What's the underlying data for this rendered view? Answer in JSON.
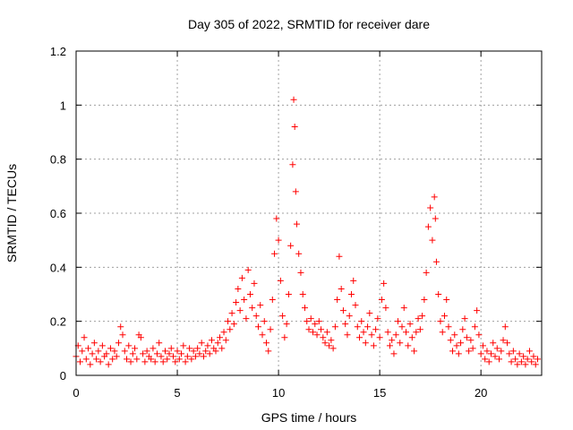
{
  "chart_data": {
    "type": "scatter",
    "title": "Day 305 of 2022, SRMTID for receiver dare",
    "xlabel": "GPS time / hours",
    "ylabel": "SRMTID / TECUs",
    "xlim": [
      0,
      23
    ],
    "ylim": [
      0,
      1.2
    ],
    "xticks": [
      0,
      5,
      10,
      15,
      20
    ],
    "xtick_labels": [
      "0",
      "5",
      "10",
      "15",
      "20"
    ],
    "yticks": [
      0,
      0.2,
      0.4,
      0.6,
      0.8,
      1,
      1.2
    ],
    "ytick_labels": [
      "0",
      "0.2",
      "0.4",
      "0.6",
      "0.8",
      "1",
      "1.2"
    ],
    "grid": true,
    "marker": "+",
    "color": "#ff0000",
    "series": [
      {
        "name": "dare",
        "points": [
          [
            0.0,
            0.07
          ],
          [
            0.1,
            0.11
          ],
          [
            0.2,
            0.05
          ],
          [
            0.3,
            0.09
          ],
          [
            0.4,
            0.14
          ],
          [
            0.5,
            0.06
          ],
          [
            0.6,
            0.1
          ],
          [
            0.7,
            0.04
          ],
          [
            0.8,
            0.08
          ],
          [
            0.9,
            0.12
          ],
          [
            1.0,
            0.06
          ],
          [
            1.1,
            0.09
          ],
          [
            1.2,
            0.05
          ],
          [
            1.3,
            0.11
          ],
          [
            1.4,
            0.07
          ],
          [
            1.5,
            0.08
          ],
          [
            1.6,
            0.04
          ],
          [
            1.7,
            0.1
          ],
          [
            1.8,
            0.06
          ],
          [
            1.9,
            0.09
          ],
          [
            2.0,
            0.07
          ],
          [
            2.1,
            0.12
          ],
          [
            2.2,
            0.18
          ],
          [
            2.3,
            0.15
          ],
          [
            2.4,
            0.09
          ],
          [
            2.5,
            0.06
          ],
          [
            2.6,
            0.11
          ],
          [
            2.7,
            0.05
          ],
          [
            2.8,
            0.08
          ],
          [
            2.9,
            0.1
          ],
          [
            3.0,
            0.06
          ],
          [
            3.1,
            0.15
          ],
          [
            3.2,
            0.14
          ],
          [
            3.3,
            0.08
          ],
          [
            3.4,
            0.05
          ],
          [
            3.5,
            0.09
          ],
          [
            3.6,
            0.07
          ],
          [
            3.7,
            0.06
          ],
          [
            3.8,
            0.1
          ],
          [
            3.9,
            0.05
          ],
          [
            4.0,
            0.08
          ],
          [
            4.1,
            0.12
          ],
          [
            4.2,
            0.07
          ],
          [
            4.3,
            0.05
          ],
          [
            4.4,
            0.09
          ],
          [
            4.5,
            0.06
          ],
          [
            4.6,
            0.08
          ],
          [
            4.7,
            0.1
          ],
          [
            4.8,
            0.07
          ],
          [
            4.9,
            0.05
          ],
          [
            5.0,
            0.09
          ],
          [
            5.1,
            0.06
          ],
          [
            5.2,
            0.08
          ],
          [
            5.3,
            0.11
          ],
          [
            5.4,
            0.05
          ],
          [
            5.5,
            0.07
          ],
          [
            5.6,
            0.1
          ],
          [
            5.7,
            0.06
          ],
          [
            5.8,
            0.09
          ],
          [
            5.9,
            0.07
          ],
          [
            6.0,
            0.1
          ],
          [
            6.1,
            0.08
          ],
          [
            6.2,
            0.12
          ],
          [
            6.3,
            0.07
          ],
          [
            6.4,
            0.09
          ],
          [
            6.5,
            0.11
          ],
          [
            6.6,
            0.08
          ],
          [
            6.7,
            0.13
          ],
          [
            6.8,
            0.1
          ],
          [
            6.9,
            0.09
          ],
          [
            7.0,
            0.12
          ],
          [
            7.1,
            0.14
          ],
          [
            7.2,
            0.1
          ],
          [
            7.3,
            0.16
          ],
          [
            7.4,
            0.13
          ],
          [
            7.5,
            0.2
          ],
          [
            7.6,
            0.17
          ],
          [
            7.7,
            0.23
          ],
          [
            7.8,
            0.19
          ],
          [
            7.9,
            0.27
          ],
          [
            8.0,
            0.32
          ],
          [
            8.1,
            0.24
          ],
          [
            8.2,
            0.36
          ],
          [
            8.3,
            0.28
          ],
          [
            8.4,
            0.21
          ],
          [
            8.5,
            0.39
          ],
          [
            8.6,
            0.3
          ],
          [
            8.7,
            0.25
          ],
          [
            8.8,
            0.34
          ],
          [
            8.9,
            0.22
          ],
          [
            9.0,
            0.18
          ],
          [
            9.1,
            0.26
          ],
          [
            9.2,
            0.15
          ],
          [
            9.3,
            0.2
          ],
          [
            9.4,
            0.12
          ],
          [
            9.5,
            0.09
          ],
          [
            9.6,
            0.17
          ],
          [
            9.7,
            0.28
          ],
          [
            9.8,
            0.45
          ],
          [
            9.9,
            0.58
          ],
          [
            10.0,
            0.5
          ],
          [
            10.1,
            0.35
          ],
          [
            10.2,
            0.22
          ],
          [
            10.3,
            0.14
          ],
          [
            10.4,
            0.19
          ],
          [
            10.5,
            0.3
          ],
          [
            10.6,
            0.48
          ],
          [
            10.7,
            0.78
          ],
          [
            10.75,
            1.02
          ],
          [
            10.8,
            0.92
          ],
          [
            10.85,
            0.68
          ],
          [
            10.9,
            0.56
          ],
          [
            11.0,
            0.45
          ],
          [
            11.1,
            0.38
          ],
          [
            11.2,
            0.3
          ],
          [
            11.3,
            0.25
          ],
          [
            11.4,
            0.2
          ],
          [
            11.5,
            0.17
          ],
          [
            11.6,
            0.21
          ],
          [
            11.7,
            0.16
          ],
          [
            11.8,
            0.19
          ],
          [
            11.9,
            0.15
          ],
          [
            12.0,
            0.2
          ],
          [
            12.1,
            0.17
          ],
          [
            12.2,
            0.14
          ],
          [
            12.3,
            0.12
          ],
          [
            12.4,
            0.16
          ],
          [
            12.5,
            0.11
          ],
          [
            12.6,
            0.13
          ],
          [
            12.7,
            0.1
          ],
          [
            12.8,
            0.18
          ],
          [
            12.9,
            0.28
          ],
          [
            13.0,
            0.44
          ],
          [
            13.1,
            0.32
          ],
          [
            13.2,
            0.24
          ],
          [
            13.3,
            0.19
          ],
          [
            13.4,
            0.15
          ],
          [
            13.5,
            0.22
          ],
          [
            13.6,
            0.3
          ],
          [
            13.7,
            0.35
          ],
          [
            13.8,
            0.26
          ],
          [
            13.9,
            0.18
          ],
          [
            14.0,
            0.14
          ],
          [
            14.1,
            0.2
          ],
          [
            14.2,
            0.16
          ],
          [
            14.3,
            0.12
          ],
          [
            14.4,
            0.18
          ],
          [
            14.5,
            0.23
          ],
          [
            14.6,
            0.15
          ],
          [
            14.7,
            0.11
          ],
          [
            14.8,
            0.17
          ],
          [
            14.9,
            0.21
          ],
          [
            15.0,
            0.14
          ],
          [
            15.1,
            0.28
          ],
          [
            15.2,
            0.34
          ],
          [
            15.3,
            0.25
          ],
          [
            15.4,
            0.16
          ],
          [
            15.5,
            0.11
          ],
          [
            15.6,
            0.13
          ],
          [
            15.7,
            0.08
          ],
          [
            15.8,
            0.15
          ],
          [
            15.9,
            0.2
          ],
          [
            16.0,
            0.12
          ],
          [
            16.1,
            0.18
          ],
          [
            16.2,
            0.25
          ],
          [
            16.3,
            0.16
          ],
          [
            16.4,
            0.11
          ],
          [
            16.5,
            0.19
          ],
          [
            16.6,
            0.14
          ],
          [
            16.7,
            0.09
          ],
          [
            16.8,
            0.16
          ],
          [
            16.9,
            0.21
          ],
          [
            17.0,
            0.17
          ],
          [
            17.1,
            0.22
          ],
          [
            17.2,
            0.28
          ],
          [
            17.3,
            0.38
          ],
          [
            17.4,
            0.55
          ],
          [
            17.5,
            0.62
          ],
          [
            17.6,
            0.5
          ],
          [
            17.7,
            0.66
          ],
          [
            17.75,
            0.58
          ],
          [
            17.8,
            0.42
          ],
          [
            17.9,
            0.3
          ],
          [
            18.0,
            0.2
          ],
          [
            18.1,
            0.16
          ],
          [
            18.2,
            0.22
          ],
          [
            18.3,
            0.28
          ],
          [
            18.4,
            0.18
          ],
          [
            18.5,
            0.13
          ],
          [
            18.6,
            0.09
          ],
          [
            18.7,
            0.15
          ],
          [
            18.8,
            0.11
          ],
          [
            18.9,
            0.08
          ],
          [
            19.0,
            0.12
          ],
          [
            19.1,
            0.17
          ],
          [
            19.2,
            0.21
          ],
          [
            19.3,
            0.14
          ],
          [
            19.4,
            0.09
          ],
          [
            19.5,
            0.13
          ],
          [
            19.6,
            0.1
          ],
          [
            19.7,
            0.18
          ],
          [
            19.8,
            0.24
          ],
          [
            19.9,
            0.15
          ],
          [
            20.0,
            0.08
          ],
          [
            20.1,
            0.11
          ],
          [
            20.2,
            0.06
          ],
          [
            20.3,
            0.09
          ],
          [
            20.4,
            0.05
          ],
          [
            20.5,
            0.08
          ],
          [
            20.6,
            0.12
          ],
          [
            20.7,
            0.07
          ],
          [
            20.8,
            0.1
          ],
          [
            20.9,
            0.06
          ],
          [
            21.0,
            0.09
          ],
          [
            21.1,
            0.13
          ],
          [
            21.2,
            0.18
          ],
          [
            21.3,
            0.12
          ],
          [
            21.4,
            0.08
          ],
          [
            21.5,
            0.05
          ],
          [
            21.6,
            0.09
          ],
          [
            21.7,
            0.06
          ],
          [
            21.8,
            0.04
          ],
          [
            21.9,
            0.08
          ],
          [
            22.0,
            0.05
          ],
          [
            22.1,
            0.07
          ],
          [
            22.2,
            0.04
          ],
          [
            22.3,
            0.06
          ],
          [
            22.4,
            0.09
          ],
          [
            22.5,
            0.05
          ],
          [
            22.6,
            0.07
          ],
          [
            22.7,
            0.04
          ],
          [
            22.8,
            0.06
          ]
        ]
      }
    ]
  }
}
